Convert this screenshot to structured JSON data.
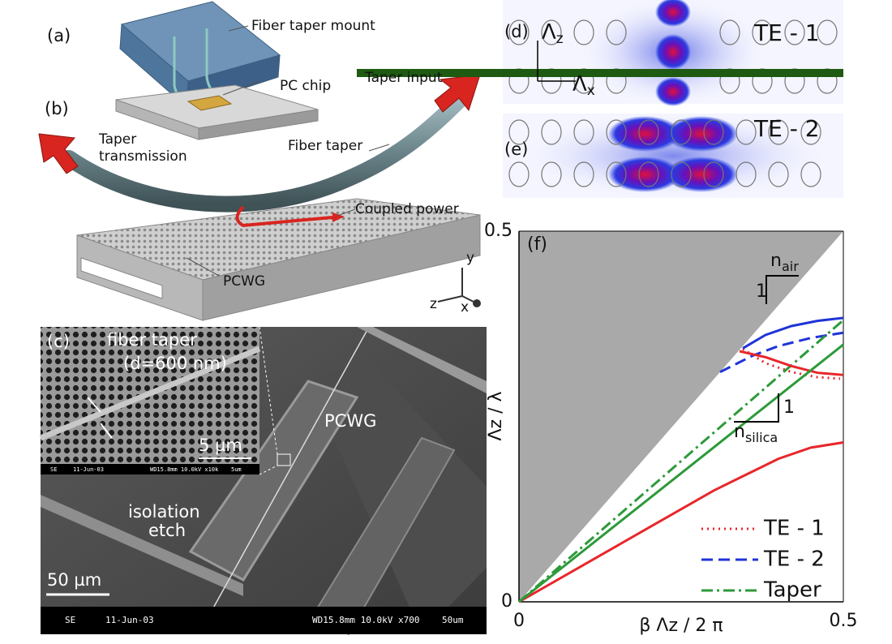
{
  "panel_a": {
    "label": "(a)",
    "mount": "Fiber taper mount",
    "chip": "PC chip"
  },
  "panel_b": {
    "label": "(b)",
    "transmission": [
      "Taper",
      "transmission"
    ],
    "taper": "Fiber taper",
    "coupled": "Coupled power",
    "pcwg": "PCWG",
    "axes": [
      "y",
      "z",
      "x"
    ]
  },
  "panel_c": {
    "label": "(c)",
    "inset_taper": [
      "fiber taper",
      "(d=600 nm)"
    ],
    "inset_scale": "5 µm",
    "inset_footer": [
      "SE",
      "11-Jun-03",
      "WD15.8mm 10.0kV x10k",
      "5um"
    ],
    "pcwg": "PCWG",
    "etch": [
      "isolation",
      "etch"
    ],
    "scale": "50 µm",
    "footer": [
      "SE",
      "11-Jun-03",
      "WD15.8mm 10.0kV x700",
      "50um"
    ]
  },
  "panel_d": {
    "label": "(d)",
    "mode": "TE - 1",
    "input": "Taper input",
    "lz": {
      "text": "Λ",
      "sub": "z"
    },
    "lx": {
      "text": "Λ",
      "sub": "x"
    }
  },
  "panel_e": {
    "label": "(e)",
    "mode": "TE - 2"
  },
  "chart_data": {
    "type": "line",
    "label": "(f)",
    "x_label": "β Λz / 2 π",
    "y_label": "Λz / λ",
    "xlim": [
      0,
      0.5
    ],
    "ylim": [
      0,
      0.5
    ],
    "xticks": [
      0,
      0.5
    ],
    "yticks": [
      0,
      0.5
    ],
    "light_line_fill": "#a9a9a9",
    "annotations": [
      {
        "text": "n",
        "sub": "air",
        "unit": "1"
      },
      {
        "text": "n",
        "sub": "silica",
        "unit": "1"
      }
    ],
    "legend": "lower right",
    "series": [
      {
        "name": "TE - 1",
        "color": "#e8262a",
        "dash": "dotted",
        "x": [
          0.345,
          0.38,
          0.42,
          0.46,
          0.495
        ],
        "values": [
          0.341,
          0.322,
          0.31,
          0.303,
          0.301
        ]
      },
      {
        "name": "TE - 2",
        "color": "#1f34d8",
        "dash": "dashed",
        "x": [
          0.31,
          0.36,
          0.4,
          0.45,
          0.5
        ],
        "values": [
          0.31,
          0.332,
          0.345,
          0.356,
          0.363
        ]
      },
      {
        "name": "Taper",
        "color": "#2d9a3a",
        "dash": "dashdot",
        "x": [
          0,
          0.5
        ],
        "values": [
          0,
          0.38
        ]
      },
      {
        "color": "#e8262a",
        "dash": "solid",
        "x": [
          0.34,
          0.38,
          0.42,
          0.46,
          0.5
        ],
        "values": [
          0.338,
          0.33,
          0.318,
          0.309,
          0.306
        ]
      },
      {
        "color": "#e8262a",
        "dash": "solid",
        "x": [
          0,
          0.1,
          0.2,
          0.3,
          0.4,
          0.45,
          0.5
        ],
        "values": [
          0,
          0.05,
          0.1,
          0.15,
          0.193,
          0.208,
          0.215
        ]
      },
      {
        "color": "#1f34d8",
        "dash": "solid",
        "x": [
          0.345,
          0.38,
          0.42,
          0.46,
          0.5
        ],
        "values": [
          0.342,
          0.36,
          0.372,
          0.379,
          0.383
        ]
      },
      {
        "color": "#2d9a3a",
        "dash": "solid",
        "x": [
          0,
          0.5
        ],
        "values": [
          0,
          0.347
        ]
      }
    ]
  }
}
